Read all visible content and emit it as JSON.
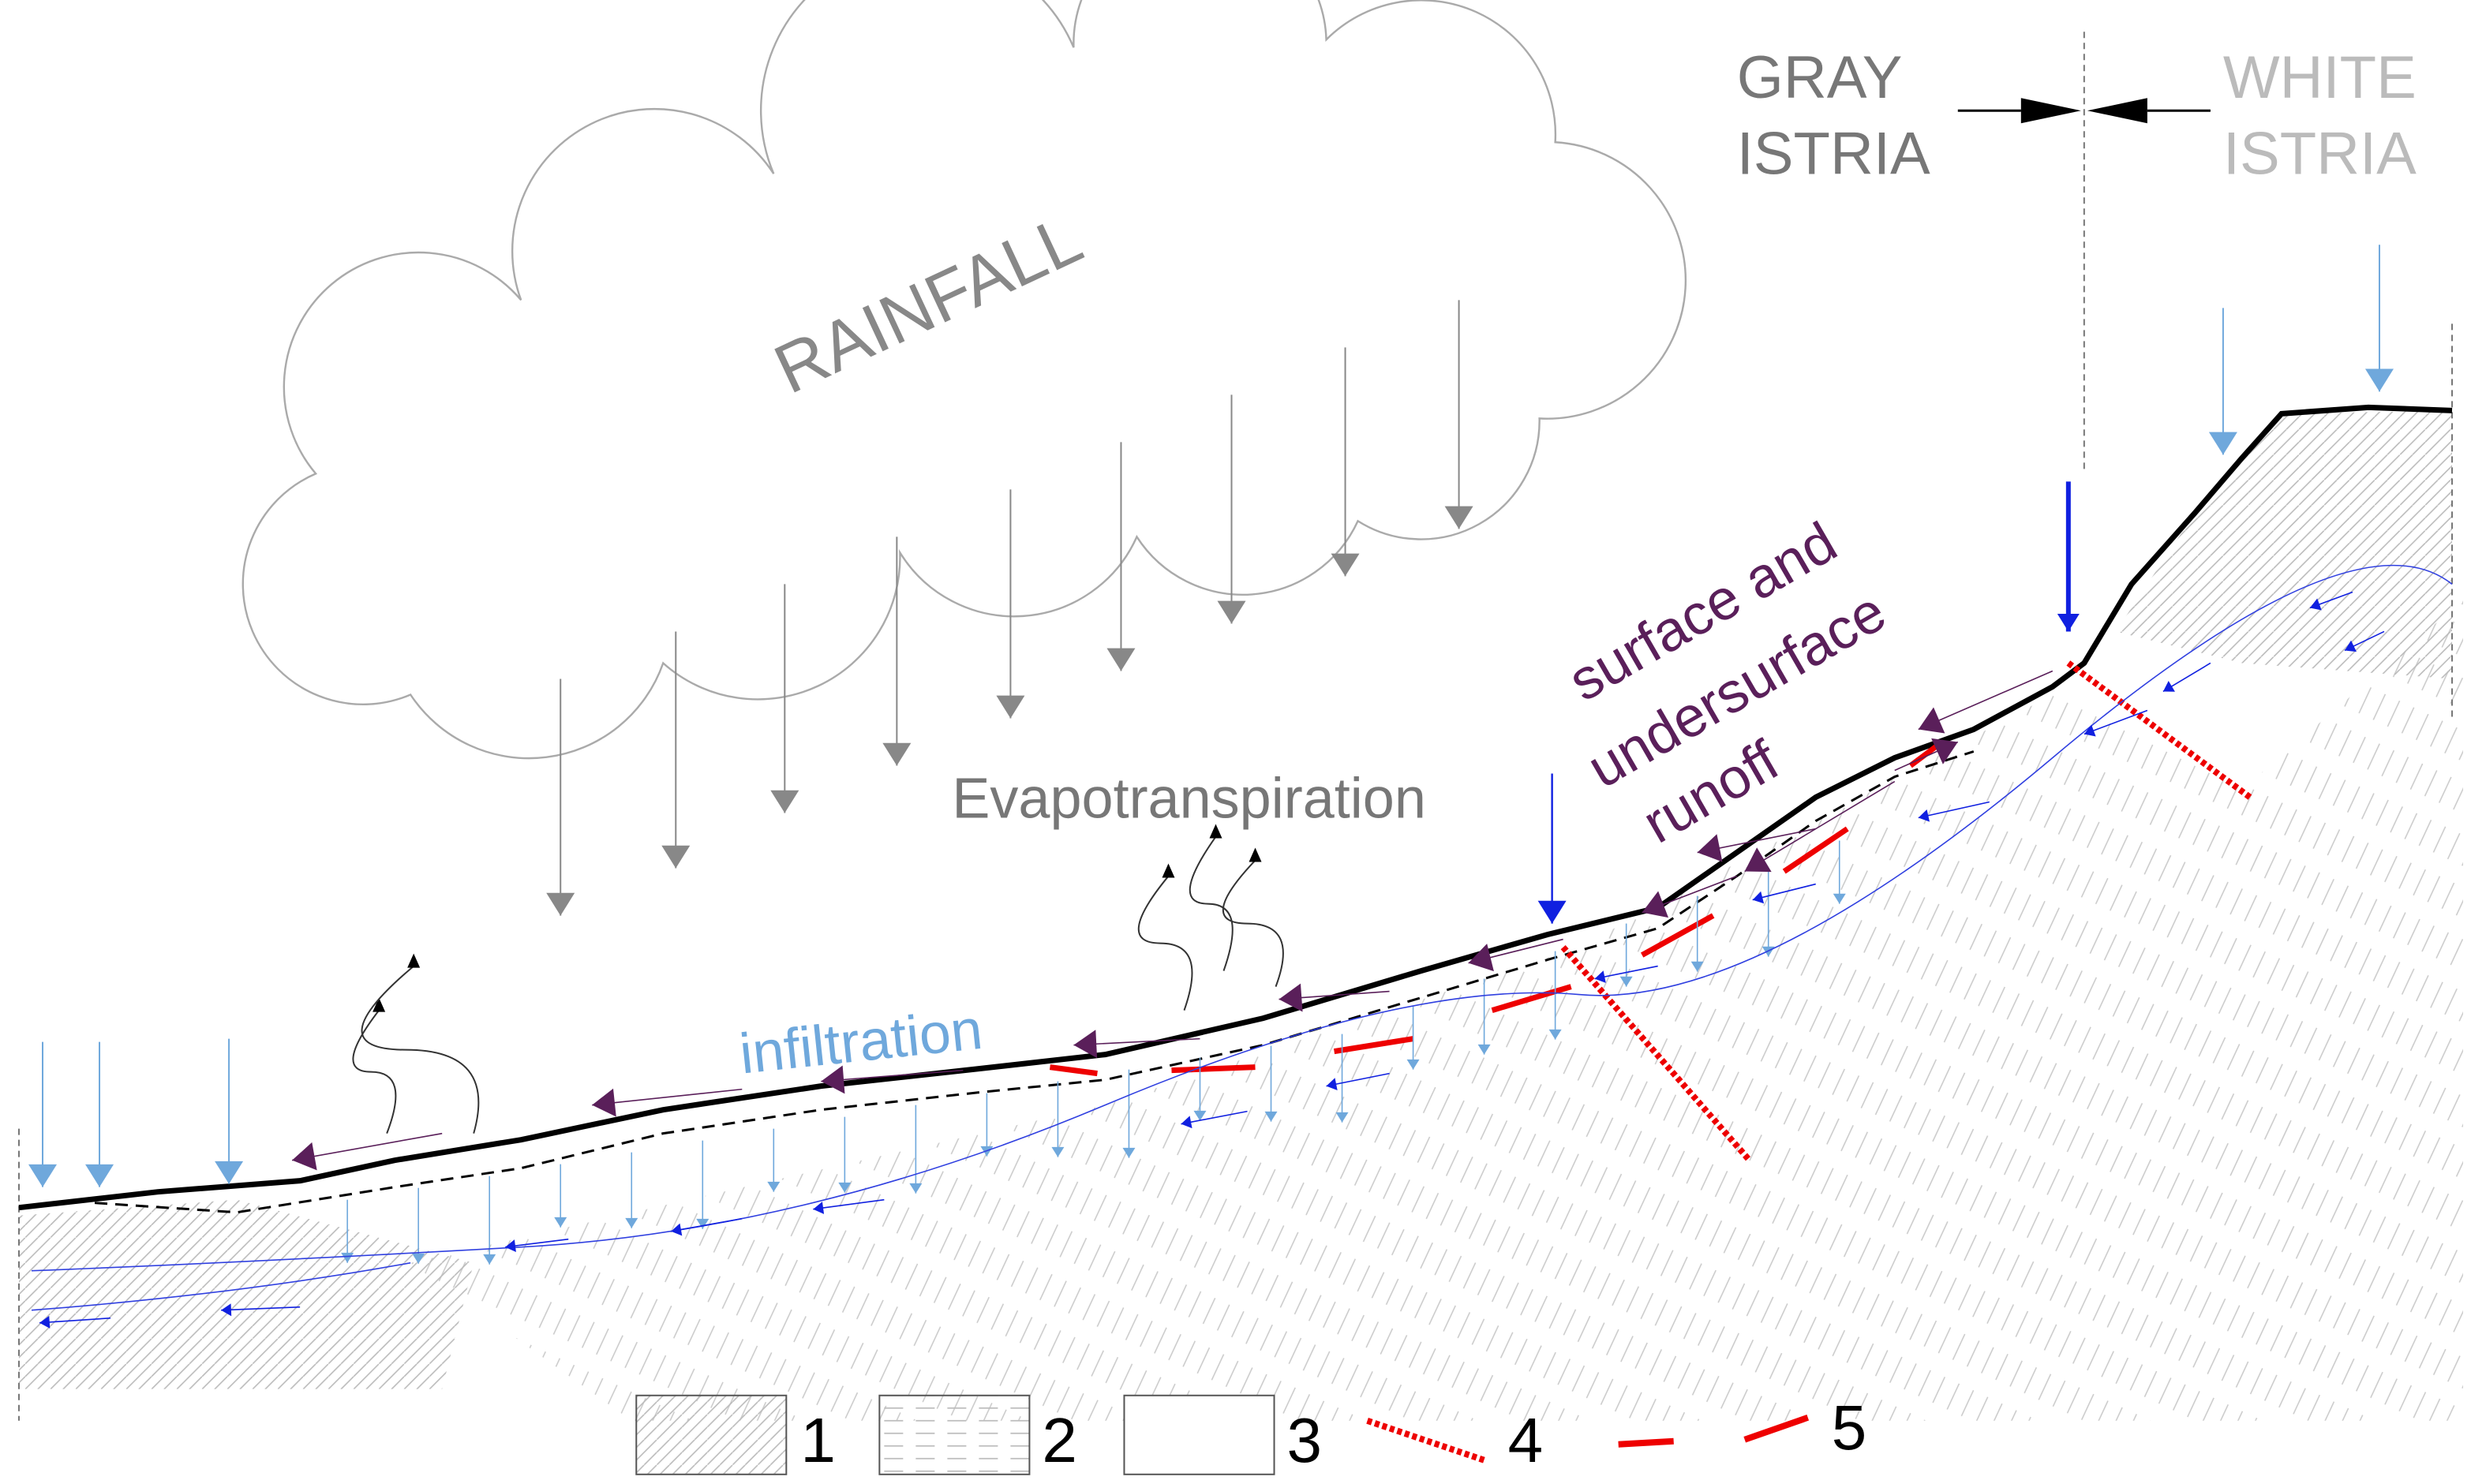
{
  "regions": {
    "gray": {
      "line1": "GRAY",
      "line2": "ISTRIA"
    },
    "white": {
      "line1": "WHITE",
      "line2": "ISTRIA"
    }
  },
  "labels": {
    "rainfall": "RAINFALL",
    "evapotranspiration": "Evapotranspiration",
    "infiltration": "infiltration",
    "runoff": [
      "surface and",
      "undersurface",
      "runoff"
    ]
  },
  "legend": [
    "1",
    "2",
    "3",
    "4",
    "5"
  ]
}
